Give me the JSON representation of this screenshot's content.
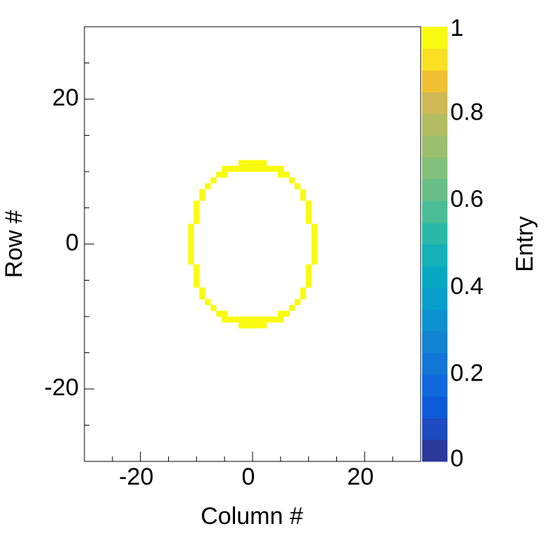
{
  "chart_data": {
    "type": "heatmap",
    "xlabel": "Column #",
    "ylabel": "Row #",
    "zlabel": "Entry",
    "xlim": [
      -30,
      30
    ],
    "ylim": [
      -30,
      30
    ],
    "zlim": [
      0,
      1
    ],
    "xticks": [
      -20,
      0,
      20
    ],
    "yticks": [
      -20,
      0,
      20
    ],
    "zticks": [
      0,
      0.2,
      0.4,
      0.6,
      0.8,
      1
    ],
    "xminorticks": [
      -25,
      -15,
      -10,
      -5,
      5,
      10,
      15,
      25
    ],
    "yminorticks": [
      -25,
      -15,
      -10,
      -5,
      5,
      10,
      15,
      25
    ],
    "cell_width": 1,
    "cell_height": 0.8,
    "palette": [
      "#2b3a9b",
      "#1e4bbf",
      "#0d5bd9",
      "#0f69dc",
      "#1276d6",
      "#1383d3",
      "#0d91cf",
      "#079ecb",
      "#07a8c4",
      "#15b1b8",
      "#2bb8a9",
      "#4abd97",
      "#67bf87",
      "#81c07a",
      "#9bbe6d",
      "#b4bc63",
      "#cfb955",
      "#f0c030",
      "#f9e022",
      "#f9fb0e"
    ],
    "x": [
      -2,
      -1,
      0,
      1,
      2,
      -5,
      -4,
      -3,
      -2,
      -1,
      0,
      1,
      2,
      3,
      4,
      5,
      -6,
      -5,
      5,
      6,
      -7,
      7,
      -8,
      8,
      -9,
      9,
      -9,
      9,
      -10,
      10,
      -10,
      10,
      -10,
      10,
      -10,
      10,
      -11,
      11,
      -11,
      11,
      -11,
      11,
      -11,
      11,
      -11,
      11,
      -11,
      11,
      -11,
      11,
      -10,
      10,
      -10,
      10,
      -10,
      10,
      -10,
      10,
      -9,
      9,
      -9,
      9,
      -8,
      8,
      -7,
      7,
      -6,
      -5,
      5,
      6,
      -5,
      -4,
      -3,
      -2,
      -1,
      0,
      1,
      2,
      3,
      4,
      5,
      -2,
      -1,
      0,
      1,
      2
    ],
    "y": [
      11.2,
      11.2,
      11.2,
      11.2,
      11.2,
      10.4,
      10.4,
      10.4,
      10.4,
      10.4,
      10.4,
      10.4,
      10.4,
      10.4,
      10.4,
      10.4,
      9.6,
      9.6,
      9.6,
      9.6,
      8.8,
      8.8,
      8.0,
      8.0,
      7.2,
      7.2,
      6.4,
      6.4,
      5.6,
      5.6,
      4.8,
      4.8,
      4.0,
      4.0,
      3.2,
      3.2,
      2.4,
      2.4,
      1.6,
      1.6,
      0.8,
      0.8,
      0.0,
      0.0,
      -0.8,
      -0.8,
      -1.6,
      -1.6,
      -2.4,
      -2.4,
      -3.2,
      -3.2,
      -4.0,
      -4.0,
      -4.8,
      -4.8,
      -5.6,
      -5.6,
      -6.4,
      -6.4,
      -7.2,
      -7.2,
      -8.0,
      -8.0,
      -8.8,
      -8.8,
      -9.6,
      -9.6,
      -9.6,
      -9.6,
      -10.4,
      -10.4,
      -10.4,
      -10.4,
      -10.4,
      -10.4,
      -10.4,
      -10.4,
      -10.4,
      -10.4,
      -10.4,
      -11.2,
      -11.2,
      -11.2,
      -11.2,
      -11.2
    ],
    "values": [
      1,
      1,
      1,
      1,
      1,
      1,
      1,
      1,
      1,
      1,
      1,
      1,
      1,
      1,
      1,
      1,
      1,
      1,
      1,
      1,
      1,
      1,
      1,
      1,
      1,
      1,
      1,
      1,
      1,
      1,
      1,
      1,
      1,
      1,
      1,
      1,
      1,
      1,
      1,
      1,
      1,
      1,
      1,
      1,
      1,
      1,
      1,
      1,
      1,
      1,
      1,
      1,
      1,
      1,
      1,
      1,
      1,
      1,
      1,
      1,
      1,
      1,
      1,
      1,
      1,
      1,
      1,
      1,
      1,
      1,
      1,
      1,
      1,
      1,
      1,
      1,
      1,
      1,
      1,
      1,
      1,
      1,
      1,
      1,
      1,
      1
    ]
  }
}
